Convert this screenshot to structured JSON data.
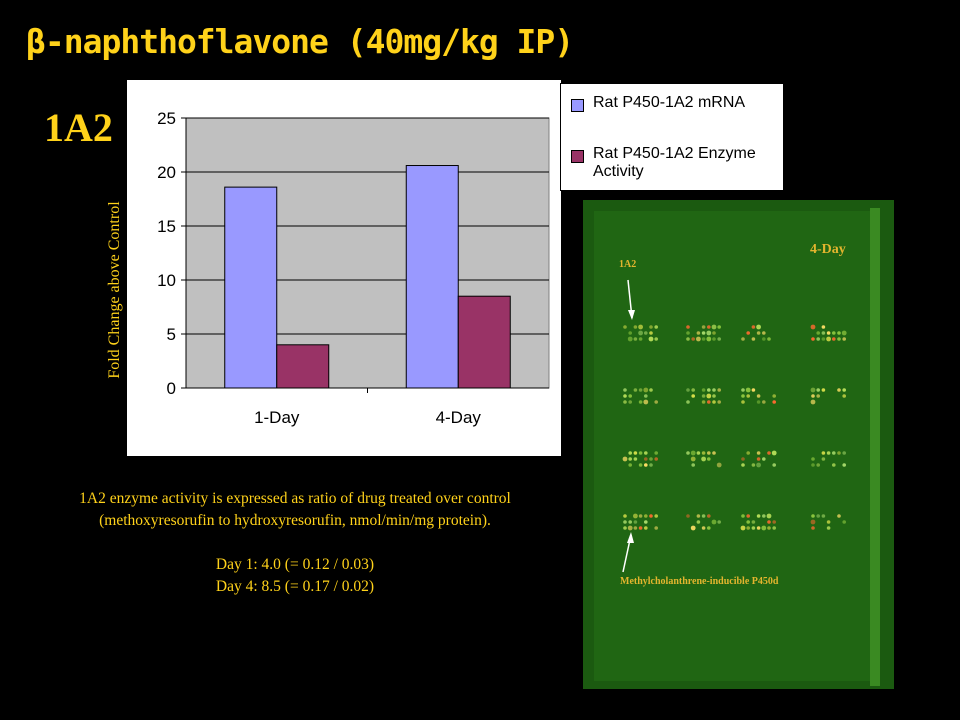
{
  "title": "β-naphthoflavone (40mg/kg IP)",
  "gene_label": "1A2",
  "chart_data": {
    "type": "bar",
    "categories": [
      "1-Day",
      "4-Day"
    ],
    "series": [
      {
        "name": "Rat P450-1A2 mRNA",
        "values": [
          18.6,
          20.6
        ],
        "color": "#9999ff"
      },
      {
        "name": "Rat P450-1A2 Enzyme Activity",
        "values": [
          4.0,
          8.5
        ],
        "color": "#993366"
      }
    ],
    "ylabel": "Fold Change above Control",
    "xlabel": "",
    "ylim": [
      0,
      25
    ],
    "yticks": [
      0,
      5,
      10,
      15,
      20,
      25
    ],
    "grid": true,
    "legend_position": "top-right",
    "plot_background": "#c0c0c0"
  },
  "notes": {
    "line1": "1A2 enzyme activity is expressed as ratio of drug treated over control",
    "line2": "(methoxyresorufin to hydroxyresorufin, nmol/min/mg protein).",
    "day1": "Day 1: 4.0 (= 0.12 / 0.03)",
    "day4": "Day 4: 8.5 (= 0.17 / 0.02)"
  },
  "microarray": {
    "day_label": "4-Day",
    "arrow_label_top": "1A2",
    "arrow_label_bottom": "Methylcholanthrene-inducible  P450d"
  }
}
